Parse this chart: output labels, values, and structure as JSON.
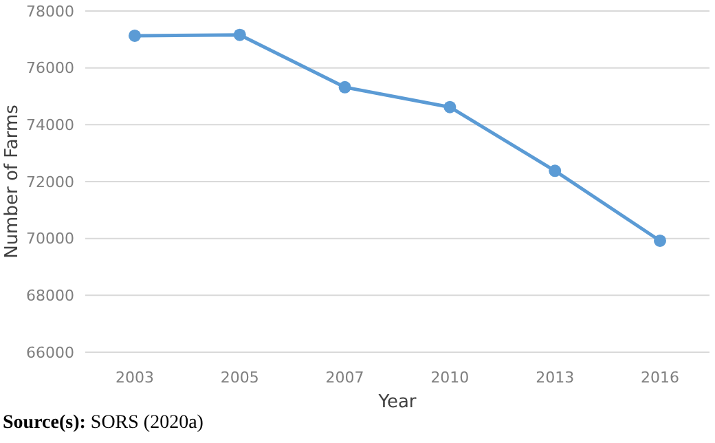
{
  "chart_data": {
    "type": "line",
    "xlabel": "Year",
    "ylabel": "Number of Farms",
    "categories": [
      "2003",
      "2005",
      "2007",
      "2010",
      "2013",
      "2016"
    ],
    "series": [
      {
        "color": "#5b9bd5",
        "values": [
          77130,
          77160,
          75320,
          74620,
          72380,
          69920
        ]
      }
    ],
    "ylim": [
      66000,
      78000
    ],
    "yticks": [
      66000,
      68000,
      70000,
      72000,
      74000,
      76000,
      78000
    ],
    "grid": "y",
    "marker": "circle",
    "line_style": "solid",
    "annotations": [
      "Source(s): SORS (2020a)"
    ]
  }
}
